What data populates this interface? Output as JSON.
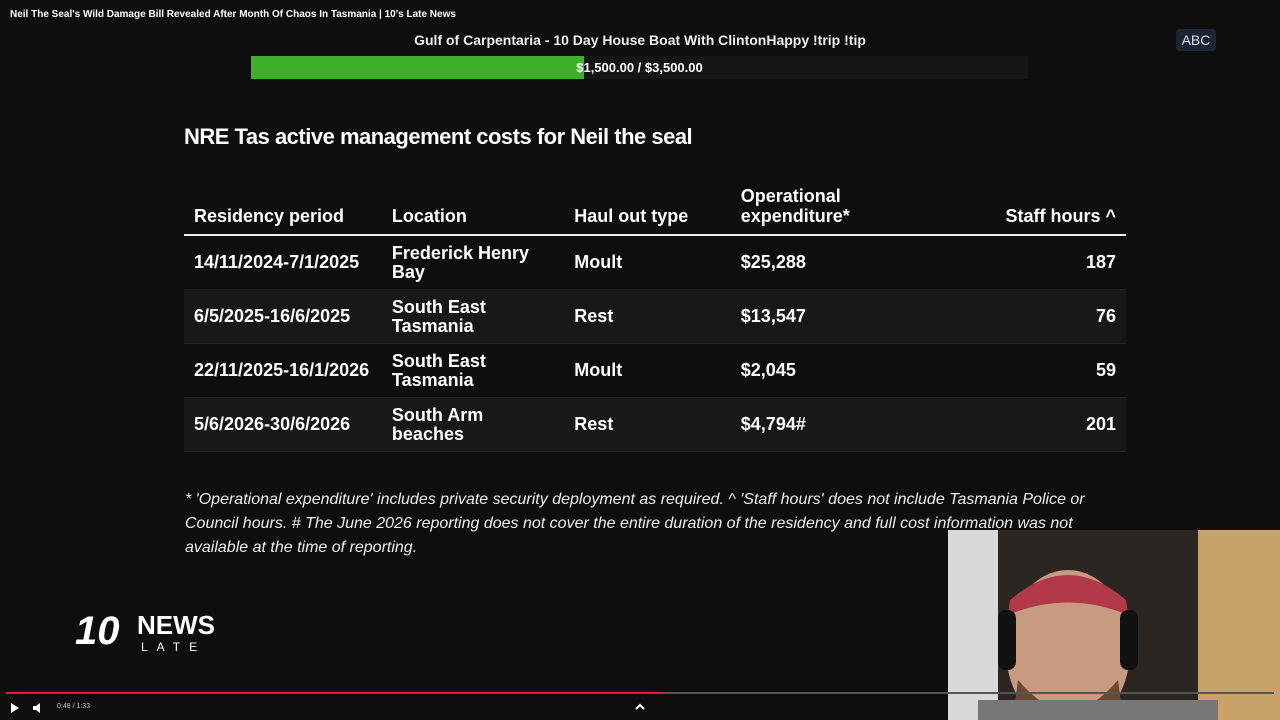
{
  "video_title": "Neil The Seal's Wild Damage Bill Revealed After Month Of Chaos In Tasmania | 10's Late News",
  "badge": "ABC",
  "goal": {
    "label": "Gulf of Carpentaria - 10 Day House Boat With ClintonHappy !trip !tip",
    "raised": 1500,
    "target": 3500,
    "text": "$1,500.00 / $3,500.00"
  },
  "table": {
    "title": "NRE Tas active management costs for Neil the seal",
    "headers": [
      "Residency period",
      "Location",
      "Haul out type",
      "Operational expenditure*",
      "Staff hours ^"
    ],
    "rows": [
      [
        "14/11/2024-7/1/2025",
        "Frederick Henry Bay",
        "Moult",
        "$25,288",
        187
      ],
      [
        "6/5/2025-16/6/2025",
        "South East Tasmania",
        "Rest",
        "$13,547",
        76
      ],
      [
        "22/11/2025-16/1/2026",
        "South East Tasmania",
        "Moult",
        "$2,045",
        59
      ],
      [
        "5/6/2026-30/6/2026",
        "South Arm beaches",
        "Rest",
        "$4,794#",
        201
      ]
    ],
    "footnote": "* 'Operational expenditure' includes private security deployment as required. ^ 'Staff hours' does not include Tasmania Police or Council hours. # The June 2026 reporting does not cover the entire duration of the residency and full cost information was not available at the time of reporting."
  },
  "logo": {
    "number": "10",
    "word": "NEWS",
    "sub": "LATE"
  },
  "player": {
    "time": "0:48 / 1:33"
  }
}
